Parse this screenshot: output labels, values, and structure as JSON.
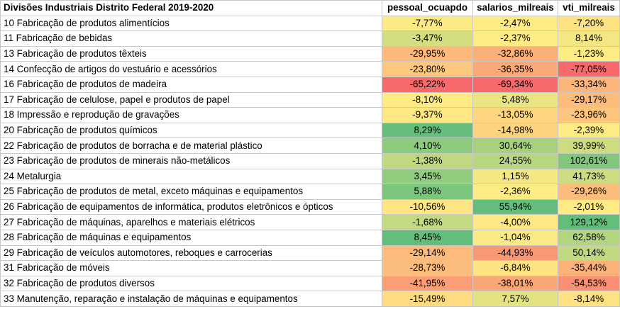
{
  "table": {
    "headers": [
      "Divisões Industriais Distrito Federal 2019-2020",
      "pessoal_ocuapdo",
      "salarios_milreais",
      "vti_milreais"
    ],
    "rows": [
      {
        "division": "10 Fabricação de produtos alimentícios",
        "pessoal": "-7,77%",
        "salarios": "-2,47%",
        "vti": "-7,20%"
      },
      {
        "division": "11 Fabricação de bebidas",
        "pessoal": "-3,47%",
        "salarios": "-2,37%",
        "vti": "8,14%"
      },
      {
        "division": "13 Fabricação de produtos têxteis",
        "pessoal": "-29,95%",
        "salarios": "-32,86%",
        "vti": "-1,23%"
      },
      {
        "division": "14 Confecção de artigos do vestuário e acessórios",
        "pessoal": "-23,80%",
        "salarios": "-36,35%",
        "vti": "-77,05%"
      },
      {
        "division": "16 Fabricação de produtos de madeira",
        "pessoal": "-65,22%",
        "salarios": "-69,34%",
        "vti": "-33,34%"
      },
      {
        "division": "17 Fabricação de celulose, papel e produtos de papel",
        "pessoal": "-8,10%",
        "salarios": "5,48%",
        "vti": "-29,17%"
      },
      {
        "division": "18 Impressão e reprodução de gravações",
        "pessoal": "-9,37%",
        "salarios": "-13,05%",
        "vti": "-23,96%"
      },
      {
        "division": "20 Fabricação de produtos químicos",
        "pessoal": "8,29%",
        "salarios": "-14,98%",
        "vti": "-2,39%"
      },
      {
        "division": "22 Fabricação de produtos de borracha e de material plástico",
        "pessoal": "4,10%",
        "salarios": "30,64%",
        "vti": "39,99%"
      },
      {
        "division": "23 Fabricação de produtos de minerais não-metálicos",
        "pessoal": "-1,38%",
        "salarios": "24,55%",
        "vti": "102,61%"
      },
      {
        "division": "24 Metalurgia",
        "pessoal": "3,45%",
        "salarios": "1,15%",
        "vti": "41,73%"
      },
      {
        "division": "25 Fabricação de produtos de metal, exceto máquinas e equipamentos",
        "pessoal": "5,88%",
        "salarios": "-2,36%",
        "vti": "-29,26%"
      },
      {
        "division": "26 Fabricação de equipamentos de informática, produtos eletrônicos e ópticos",
        "pessoal": "-10,56%",
        "salarios": "55,94%",
        "vti": "-2,01%"
      },
      {
        "division": "27 Fabricação de máquinas, aparelhos e materiais elétricos",
        "pessoal": "-1,68%",
        "salarios": "-4,00%",
        "vti": "129,12%"
      },
      {
        "division": "28 Fabricação de máquinas e equipamentos",
        "pessoal": "8,45%",
        "salarios": "-1,04%",
        "vti": "62,58%"
      },
      {
        "division": "29 Fabricação de veículos automotores, reboques e carrocerias",
        "pessoal": "-29,14%",
        "salarios": "-44,93%",
        "vti": "50,14%"
      },
      {
        "division": "31 Fabricação de móveis",
        "pessoal": "-28,73%",
        "salarios": "-6,84%",
        "vti": "-35,44%"
      },
      {
        "division": "32 Fabricação de produtos diversos",
        "pessoal": "-41,95%",
        "salarios": "-38,01%",
        "vti": "-54,53%"
      },
      {
        "division": "33 Manutenção, reparação e instalação de máquinas e equipamentos",
        "pessoal": "-15,49%",
        "salarios": "7,57%",
        "vti": "-8,14%"
      }
    ]
  },
  "colors": {
    "scale_red": "#f8696b",
    "scale_yellow": "#ffeb84",
    "scale_green": "#63be7b",
    "grid": "#c8c8c8"
  }
}
